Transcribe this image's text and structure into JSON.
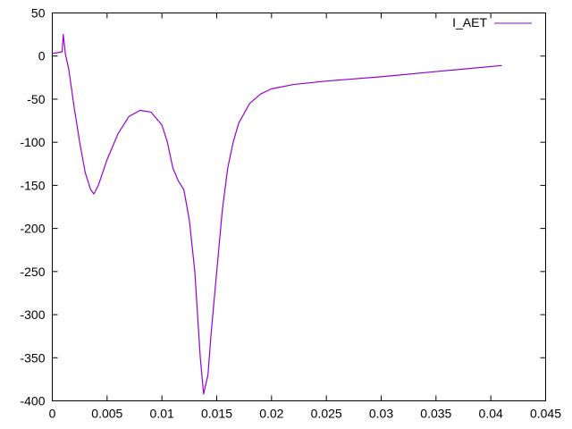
{
  "chart_data": {
    "type": "line",
    "title": "",
    "xlabel": "",
    "ylabel": "",
    "xlim": [
      0,
      0.045
    ],
    "ylim": [
      -400,
      50
    ],
    "x_ticks": [
      {
        "value": 0,
        "label": "0"
      },
      {
        "value": 0.005,
        "label": "0.005"
      },
      {
        "value": 0.01,
        "label": "0.01"
      },
      {
        "value": 0.015,
        "label": "0.015"
      },
      {
        "value": 0.02,
        "label": "0.02"
      },
      {
        "value": 0.025,
        "label": "0.025"
      },
      {
        "value": 0.03,
        "label": "0.03"
      },
      {
        "value": 0.035,
        "label": "0.035"
      },
      {
        "value": 0.04,
        "label": "0.04"
      },
      {
        "value": 0.045,
        "label": "0.045"
      }
    ],
    "y_ticks": [
      {
        "value": 50,
        "label": "50"
      },
      {
        "value": 0,
        "label": "0"
      },
      {
        "value": -50,
        "label": "-50"
      },
      {
        "value": -100,
        "label": "-100"
      },
      {
        "value": -150,
        "label": "-150"
      },
      {
        "value": -200,
        "label": "-200"
      },
      {
        "value": -250,
        "label": "-250"
      },
      {
        "value": -300,
        "label": "-300"
      },
      {
        "value": -350,
        "label": "-350"
      },
      {
        "value": -400,
        "label": "-400"
      }
    ],
    "grid": false,
    "legend_position": "top-right",
    "series": [
      {
        "name": "I_AET",
        "color": "#9400d3",
        "points": [
          [
            0.0,
            3
          ],
          [
            0.0005,
            4
          ],
          [
            0.0009,
            5
          ],
          [
            0.001,
            25
          ],
          [
            0.0012,
            2
          ],
          [
            0.0015,
            -15
          ],
          [
            0.002,
            -60
          ],
          [
            0.0025,
            -100
          ],
          [
            0.003,
            -135
          ],
          [
            0.0035,
            -155
          ],
          [
            0.0038,
            -160
          ],
          [
            0.0042,
            -150
          ],
          [
            0.005,
            -120
          ],
          [
            0.006,
            -90
          ],
          [
            0.007,
            -70
          ],
          [
            0.008,
            -63
          ],
          [
            0.009,
            -65
          ],
          [
            0.01,
            -80
          ],
          [
            0.0105,
            -100
          ],
          [
            0.011,
            -130
          ],
          [
            0.0115,
            -145
          ],
          [
            0.012,
            -155
          ],
          [
            0.0125,
            -190
          ],
          [
            0.013,
            -250
          ],
          [
            0.0135,
            -350
          ],
          [
            0.0138,
            -392
          ],
          [
            0.0142,
            -370
          ],
          [
            0.0145,
            -320
          ],
          [
            0.015,
            -250
          ],
          [
            0.0155,
            -180
          ],
          [
            0.016,
            -130
          ],
          [
            0.0165,
            -100
          ],
          [
            0.017,
            -78
          ],
          [
            0.018,
            -55
          ],
          [
            0.019,
            -44
          ],
          [
            0.02,
            -38
          ],
          [
            0.022,
            -33
          ],
          [
            0.025,
            -29
          ],
          [
            0.03,
            -24
          ],
          [
            0.035,
            -18
          ],
          [
            0.041,
            -11
          ]
        ]
      }
    ]
  }
}
